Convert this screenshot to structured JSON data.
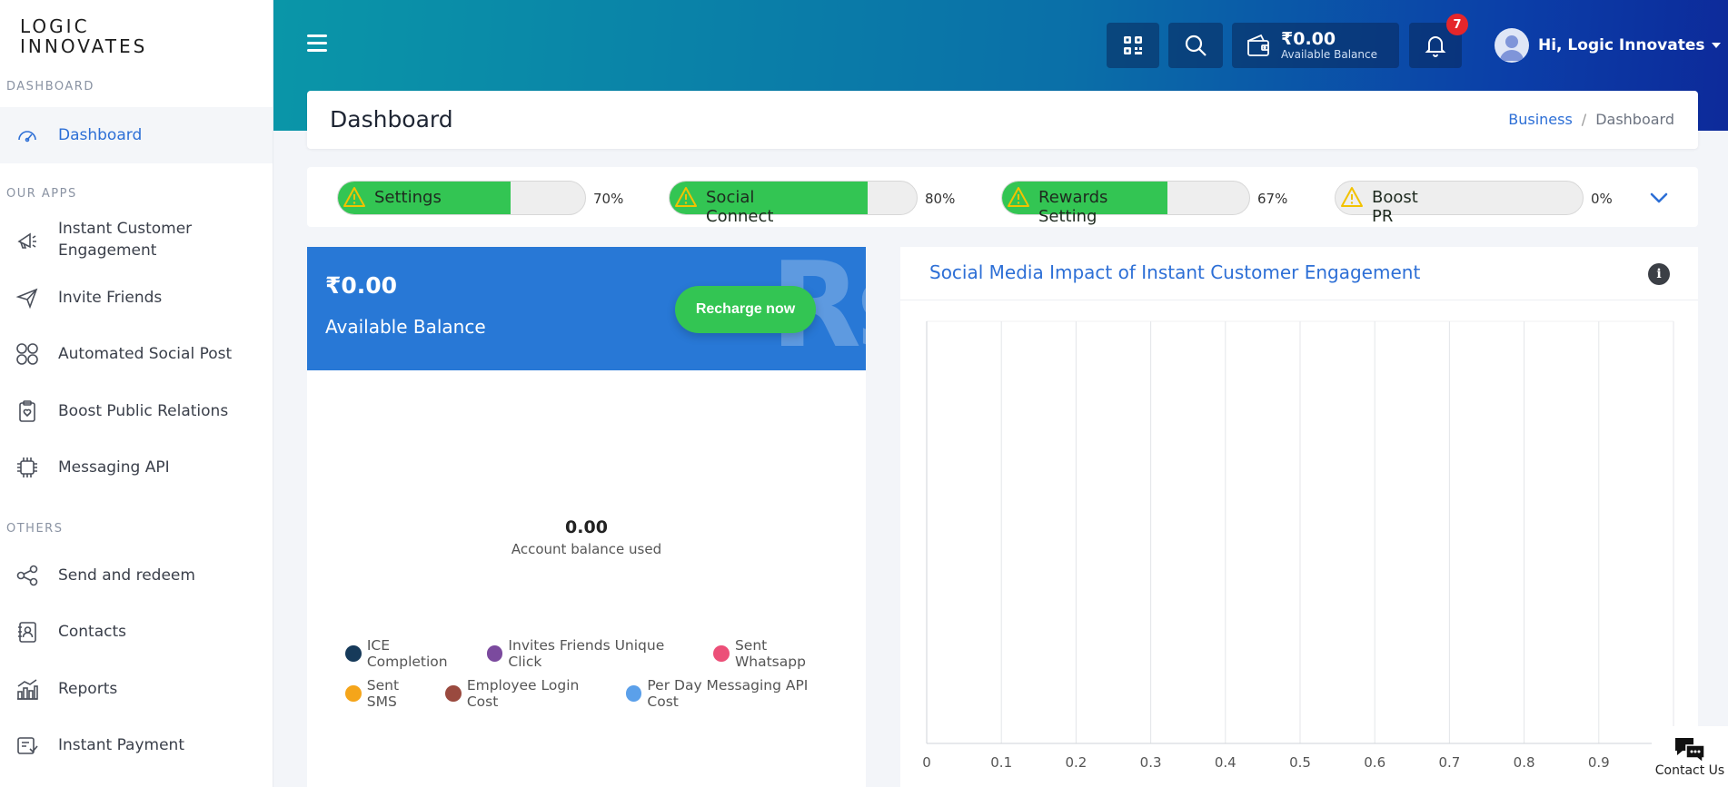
{
  "sidebar": {
    "logo_line1": "LOGIC",
    "logo_line2": "INNOVATES",
    "sections": {
      "dashboard": "DASHBOARD",
      "apps": "OUR APPS",
      "others": "OTHERS"
    },
    "items": {
      "dashboard": {
        "label": "Dashboard",
        "icon": "speedometer-icon"
      },
      "ice_line1": "Instant Customer",
      "ice_line2": "Engagement",
      "invite": {
        "label": "Invite Friends",
        "icon": "paper-plane-icon"
      },
      "social_post": {
        "label": "Automated Social Post",
        "icon": "social-grid-icon"
      },
      "boost_pr": {
        "label": "Boost Public Relations",
        "icon": "clipboard-heart-icon"
      },
      "messaging_api": {
        "label": "Messaging API",
        "icon": "api-chip-icon"
      },
      "send_redeem": {
        "label": "Send and redeem",
        "icon": "share-nodes-icon"
      },
      "contacts": {
        "label": "Contacts",
        "icon": "contact-book-icon"
      },
      "reports": {
        "label": "Reports",
        "icon": "bar-chart-icon"
      },
      "payment": {
        "label": "Instant Payment",
        "icon": "payment-icon"
      }
    }
  },
  "header": {
    "wallet_amount": "₹0.00",
    "wallet_label": "Available Balance",
    "notification_count": "7",
    "user_greeting": "Hi, Logic Innovates",
    "bg_colors": [
      "#0a96a8",
      "#0b3ea8"
    ]
  },
  "page": {
    "title": "Dashboard",
    "breadcrumb_link": "Business",
    "breadcrumb_sep": "/",
    "breadcrumb_current": "Dashboard"
  },
  "progress": [
    {
      "label": "Settings",
      "percent": 70,
      "percent_text": "70%"
    },
    {
      "label": "Social Connect",
      "percent": 80,
      "percent_text": "80%"
    },
    {
      "label": "Rewards Setting",
      "percent": 67,
      "percent_text": "67%"
    },
    {
      "label": "Boost PR",
      "percent": 0,
      "percent_text": "0%"
    }
  ],
  "balance": {
    "amount": "₹0.00",
    "label": "Available Balance",
    "watermark": "Rs",
    "recharge_label": "Recharge now",
    "used_value": "0.00",
    "used_label": "Account balance used",
    "legend": [
      {
        "label": "ICE Completion",
        "color": "#163a5a"
      },
      {
        "label": "Invites Friends Unique Click",
        "color": "#7b4a9e"
      },
      {
        "label": "Sent Whatsapp",
        "color": "#ec4f78"
      },
      {
        "label": "Sent SMS",
        "color": "#f5a51a"
      },
      {
        "label": "Employee Login Cost",
        "color": "#9a4a3f"
      },
      {
        "label": "Per Day Messaging API Cost",
        "color": "#5ba0ea"
      }
    ]
  },
  "chart": {
    "title": "Social Media Impact of Instant Customer Engagement",
    "info_glyph": "i"
  },
  "chart_data": {
    "type": "bar",
    "categories": [],
    "values": [],
    "xlim": [
      0,
      1
    ],
    "x_ticks": [
      "0",
      "0.1",
      "0.2",
      "0.3",
      "0.4",
      "0.5",
      "0.6",
      "0.7",
      "0.8",
      "0.9"
    ],
    "grid": true
  },
  "contact": {
    "label": "Contact Us"
  }
}
